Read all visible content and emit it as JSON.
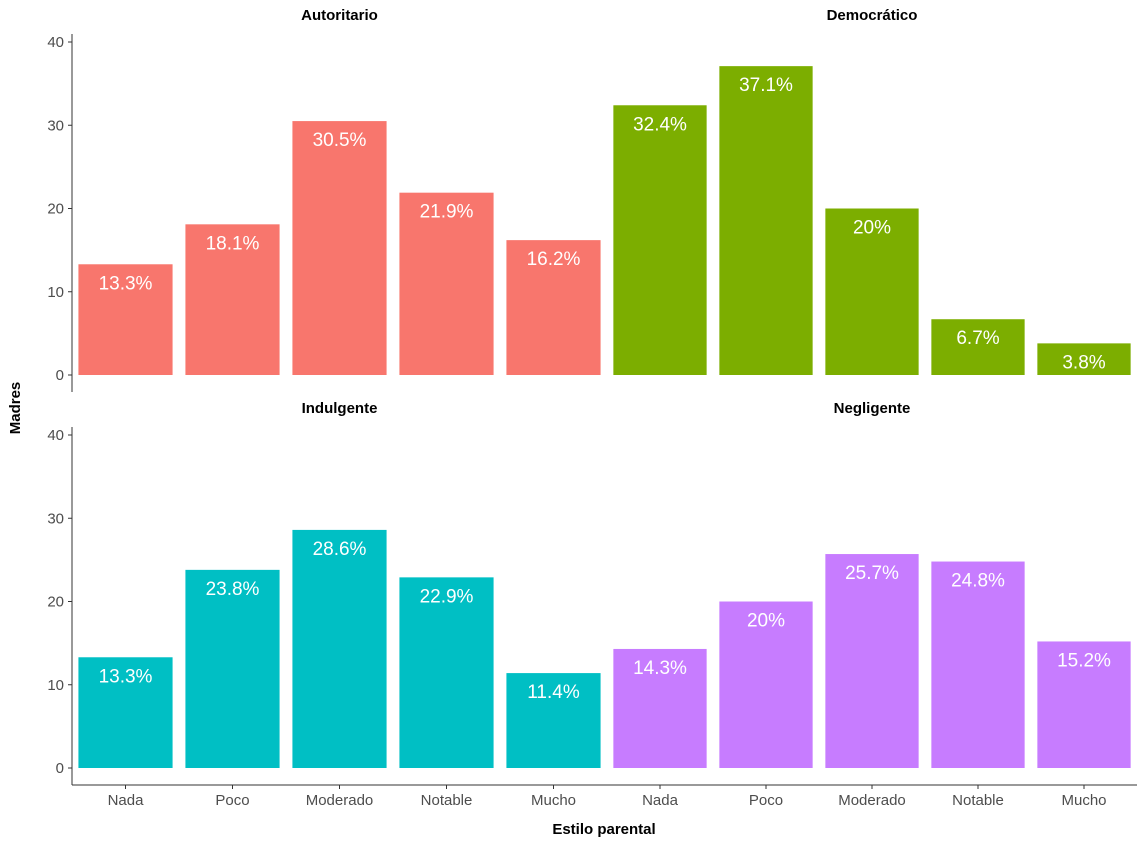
{
  "chart_data": {
    "type": "bar",
    "layout": "facet-grid-2x2",
    "xlabel": "Estilo parental",
    "ylabel": "Madres",
    "categories": [
      "Nada",
      "Poco",
      "Moderado",
      "Notable",
      "Mucho"
    ],
    "ylim": [
      0,
      40
    ],
    "yticks": [
      0,
      10,
      20,
      30,
      40
    ],
    "grid": false,
    "legend": "none",
    "facets": [
      {
        "title": "Autoritario",
        "color": "#F8766D",
        "values": [
          13.3,
          18.1,
          30.5,
          21.9,
          16.2
        ],
        "labels": [
          "13.3%",
          "18.1%",
          "30.5%",
          "21.9%",
          "16.2%"
        ]
      },
      {
        "title": "Democrático",
        "color": "#7CAE00",
        "values": [
          32.4,
          37.1,
          20,
          6.7,
          3.8
        ],
        "labels": [
          "32.4%",
          "37.1%",
          "20%",
          "6.7%",
          "3.8%"
        ]
      },
      {
        "title": "Indulgente",
        "color": "#00BFC4",
        "values": [
          13.3,
          23.8,
          28.6,
          22.9,
          11.4
        ],
        "labels": [
          "13.3%",
          "23.8%",
          "28.6%",
          "22.9%",
          "11.4%"
        ]
      },
      {
        "title": "Negligente",
        "color": "#C77CFF",
        "values": [
          14.3,
          20,
          25.7,
          24.8,
          15.2
        ],
        "labels": [
          "14.3%",
          "20%",
          "25.7%",
          "24.8%",
          "15.2%"
        ]
      }
    ]
  }
}
